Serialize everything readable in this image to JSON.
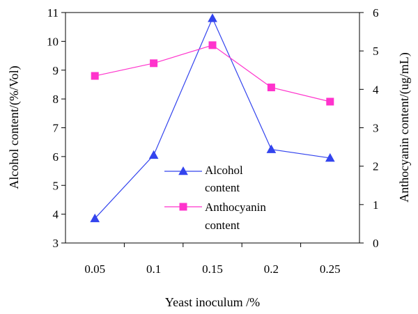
{
  "chart_data": {
    "type": "line",
    "categories": [
      "0.05",
      "0.1",
      "0.15",
      "0.2",
      "0.25"
    ],
    "xlabel": "Yeast inoculum /%",
    "ylabel_left": "Alcohol content/(%/Vol)",
    "ylabel_right": "Anthocyanin content/(ug/mL)",
    "ylim_left": [
      3,
      11
    ],
    "yticks_left": [
      3,
      4,
      5,
      6,
      7,
      8,
      9,
      10,
      11
    ],
    "ylim_right": [
      0,
      6
    ],
    "yticks_right": [
      0,
      1,
      2,
      3,
      4,
      5,
      6
    ],
    "grid": false,
    "legend_position": "center",
    "series": [
      {
        "name_lines": [
          "Alcohol",
          "content"
        ],
        "axis": "left",
        "color": "#3344ee",
        "marker": "triangle",
        "values": [
          3.85,
          6.05,
          10.8,
          6.25,
          5.95
        ]
      },
      {
        "name_lines": [
          "Anthocyanin",
          "content"
        ],
        "axis": "right",
        "color": "#ff33cc",
        "marker": "square",
        "values": [
          4.35,
          4.68,
          5.15,
          4.05,
          3.68
        ]
      }
    ]
  }
}
